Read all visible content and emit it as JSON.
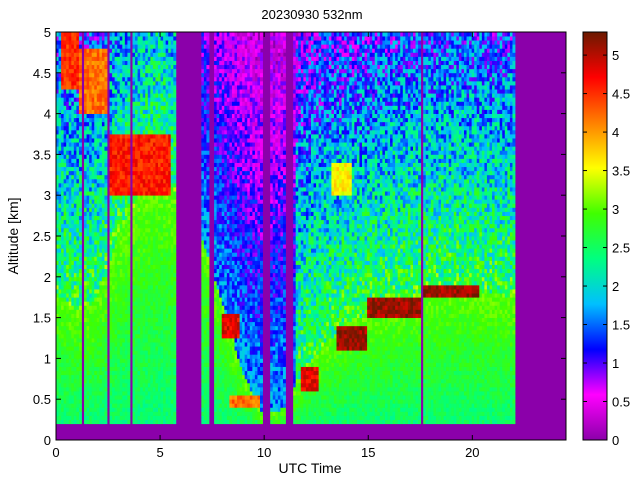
{
  "chart_data": {
    "type": "heatmap",
    "title": "20230930 532nm",
    "xlabel": "UTC Time",
    "ylabel": "Altitude [km]",
    "xlim": [
      0,
      24.5
    ],
    "ylim": [
      0,
      5
    ],
    "x_ticks": [
      0,
      5,
      10,
      15,
      20
    ],
    "x_tick_labels": [
      "0",
      "5",
      "10",
      "15",
      "20"
    ],
    "y_ticks": [
      0,
      0.5,
      1,
      1.5,
      2,
      2.5,
      3,
      3.5,
      4,
      4.5,
      5
    ],
    "y_tick_labels": [
      "0",
      "0.5",
      "1",
      "1.5",
      "2",
      "2.5",
      "3",
      "3.5",
      "4",
      "4.5",
      "5"
    ],
    "colorbar": {
      "range": [
        0,
        5.3
      ],
      "ticks": [
        0,
        0.5,
        1,
        1.5,
        2,
        2.5,
        3,
        3.5,
        4,
        4.5,
        5
      ],
      "tick_labels": [
        "0",
        "0.5",
        "1",
        "1.5",
        "2",
        "2.5",
        "3",
        "3.5",
        "4",
        "4.5",
        "5"
      ],
      "colormap": [
        "#8b00aa",
        "#ff00ff",
        "#0000ff",
        "#00c0ff",
        "#00ff80",
        "#40ff00",
        "#ffff00",
        "#ff8000",
        "#ff0000",
        "#6b1a00"
      ]
    },
    "background_value": 0.05,
    "surface_layer": {
      "x_range": [
        0,
        22.1
      ],
      "altitude_km": 0.22,
      "value": 0.9
    },
    "boundary_layer_top": [
      {
        "x": 0,
        "top_km": 1.8
      },
      {
        "x": 1,
        "top_km": 1.6
      },
      {
        "x": 2,
        "top_km": 1.7
      },
      {
        "x": 3,
        "top_km": 2.5
      },
      {
        "x": 4,
        "top_km": 3.0
      },
      {
        "x": 5,
        "top_km": 3.3
      },
      {
        "x": 5.7,
        "top_km": 3.0
      },
      {
        "x": 7.0,
        "top_km": 2.5
      },
      {
        "x": 8.2,
        "top_km": 1.5
      },
      {
        "x": 9.0,
        "top_km": 0.8
      },
      {
        "x": 10.0,
        "top_km": 0.3
      },
      {
        "x": 11.0,
        "top_km": 0.4
      },
      {
        "x": 12.0,
        "top_km": 0.9
      },
      {
        "x": 13.0,
        "top_km": 1.2
      },
      {
        "x": 14.0,
        "top_km": 1.45
      },
      {
        "x": 15.0,
        "top_km": 1.55
      },
      {
        "x": 16.0,
        "top_km": 1.65
      },
      {
        "x": 17.0,
        "top_km": 1.75
      },
      {
        "x": 18.0,
        "top_km": 1.85
      },
      {
        "x": 19.0,
        "top_km": 1.9
      },
      {
        "x": 20.0,
        "top_km": 1.85
      },
      {
        "x": 21.0,
        "top_km": 1.8
      },
      {
        "x": 22.1,
        "top_km": 1.75
      }
    ],
    "cloud_layers": [
      {
        "x_start": 0.2,
        "x_end": 1.1,
        "base_km": 4.3,
        "top_km": 5.0,
        "value": 4.5
      },
      {
        "x_start": 1.1,
        "x_end": 2.5,
        "base_km": 4.0,
        "top_km": 4.8,
        "value": 4.2
      },
      {
        "x_start": 2.5,
        "x_end": 5.5,
        "base_km": 3.0,
        "top_km": 3.75,
        "value": 4.6
      },
      {
        "x_start": 8.0,
        "x_end": 8.8,
        "base_km": 1.25,
        "top_km": 1.55,
        "value": 4.8
      },
      {
        "x_start": 8.3,
        "x_end": 9.8,
        "base_km": 0.4,
        "top_km": 0.55,
        "value": 4.2
      },
      {
        "x_start": 11.8,
        "x_end": 12.6,
        "base_km": 0.6,
        "top_km": 0.9,
        "value": 4.8
      },
      {
        "x_start": 13.5,
        "x_end": 15.0,
        "base_km": 1.1,
        "top_km": 1.4,
        "value": 5.1
      },
      {
        "x_start": 15.0,
        "x_end": 17.5,
        "base_km": 1.5,
        "top_km": 1.75,
        "value": 5.1
      },
      {
        "x_start": 17.5,
        "x_end": 20.3,
        "base_km": 1.75,
        "top_km": 1.9,
        "value": 5.1
      },
      {
        "x_start": 13.2,
        "x_end": 14.2,
        "base_km": 3.0,
        "top_km": 3.4,
        "value": 3.6
      }
    ],
    "dropout_columns": [
      {
        "x_start": 1.2,
        "x_end": 1.4
      },
      {
        "x_start": 2.4,
        "x_end": 2.6
      },
      {
        "x_start": 3.5,
        "x_end": 3.65
      },
      {
        "x_start": 5.7,
        "x_end": 7.0
      },
      {
        "x_start": 7.4,
        "x_end": 7.6
      },
      {
        "x_start": 9.95,
        "x_end": 10.25
      },
      {
        "x_start": 11.0,
        "x_end": 11.4
      },
      {
        "x_start": 17.5,
        "x_end": 17.65
      },
      {
        "x_start": 22.1,
        "x_end": 24.5
      }
    ]
  }
}
